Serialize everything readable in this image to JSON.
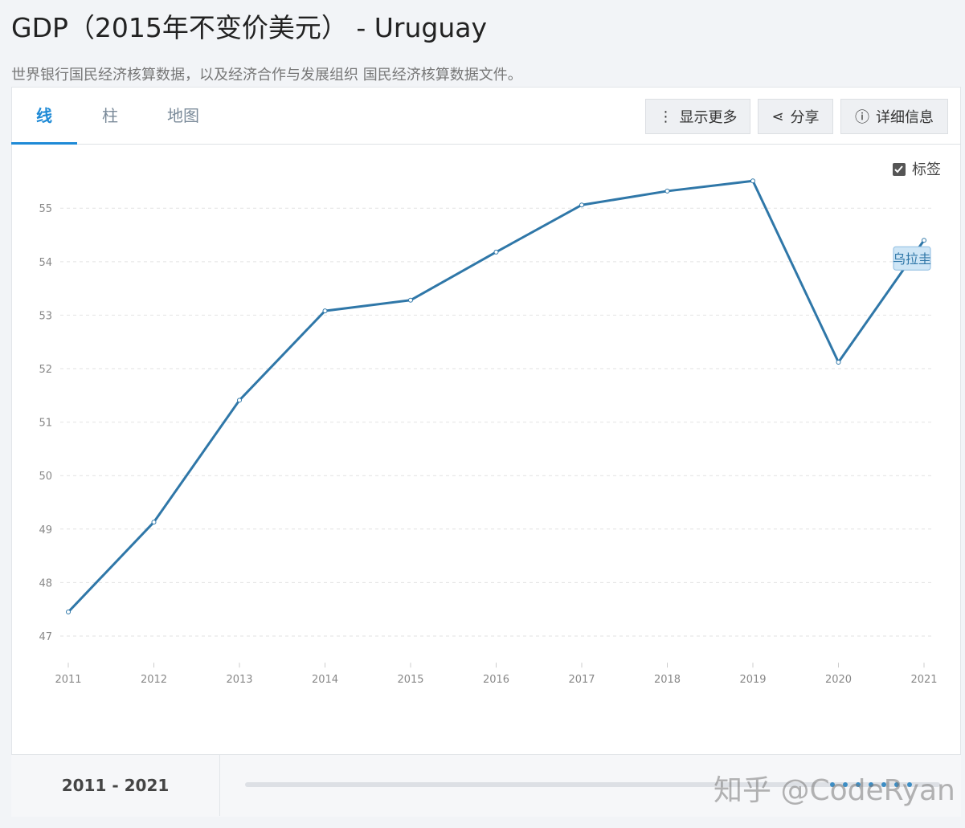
{
  "header": {
    "title": "GDP（2015年不变价美元） - Uruguay",
    "subtitle": "世界银行国民经济核算数据，以及经济合作与发展组织 国民经济核算数据文件。"
  },
  "tabs": [
    "线",
    "柱",
    "地图"
  ],
  "buttons": [
    "显示更多",
    "分享",
    "详细信息"
  ],
  "label_toggle": "标签",
  "footer": {
    "range": "2011 - 2021"
  },
  "watermark": "知乎 @CodeRyan",
  "chart_data": {
    "type": "line",
    "x": [
      2011,
      2012,
      2013,
      2014,
      2015,
      2016,
      2017,
      2018,
      2019,
      2020,
      2021
    ],
    "series": [
      {
        "name": "乌拉圭",
        "color": "#2f77a8",
        "values": [
          47.45,
          49.13,
          51.41,
          53.08,
          53.28,
          54.18,
          55.06,
          55.32,
          55.51,
          52.12,
          54.4
        ]
      }
    ],
    "xlim": [
      2011,
      2021
    ],
    "xticks": [
      2011,
      2012,
      2013,
      2014,
      2015,
      2016,
      2017,
      2018,
      2019,
      2020,
      2021
    ],
    "ylim": [
      46.5,
      55.9
    ],
    "yticks": [
      47,
      48,
      49,
      50,
      51,
      52,
      53,
      54,
      55
    ],
    "grid": true
  }
}
